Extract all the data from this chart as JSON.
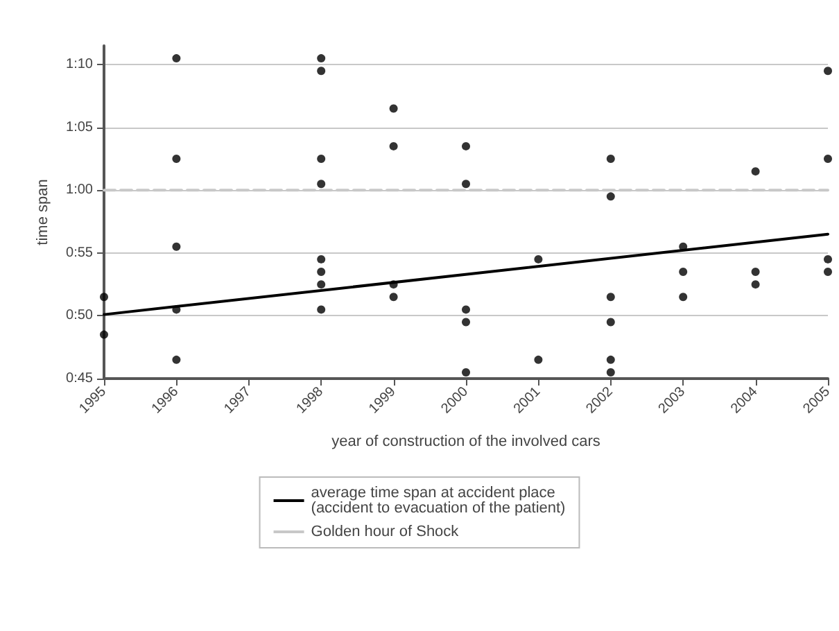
{
  "chart_data": {
    "type": "scatter",
    "xlabel": "year of construction of the involved cars",
    "ylabel": "time span",
    "series": [
      {
        "color": "#000000",
        "x": [
          1995,
          1995,
          1996,
          1996,
          1996,
          1996,
          1996,
          1998,
          1998,
          1998,
          1998,
          1998,
          1998,
          1998,
          1998,
          1999,
          1999,
          1999,
          1999,
          2000,
          2000,
          2000,
          2000,
          2000,
          2001,
          2001,
          2002,
          2002,
          2002,
          2002,
          2002,
          2002,
          2003,
          2003,
          2003,
          2004,
          2004,
          2004,
          2005,
          2005,
          2005,
          2005
        ],
        "values": [
          51.5,
          48.5,
          70.5,
          62.5,
          55.5,
          50.5,
          46.5,
          70.5,
          69.5,
          62.5,
          60.5,
          54.5,
          53.5,
          52.5,
          50.5,
          66.5,
          63.5,
          52.5,
          51.5,
          63.5,
          60.5,
          50.5,
          49.5,
          45.5,
          54.5,
          46.5,
          62.5,
          59.5,
          51.5,
          49.5,
          46.5,
          45.5,
          55.5,
          53.5,
          51.5,
          61.5,
          53.5,
          52.5,
          69.5,
          62.5,
          54.5,
          53.5
        ]
      },
      {
        "type": "line",
        "name": "average time span at accident place\n(accident to evacuation of the patient)",
        "color": "#000000",
        "x": [
          1995,
          2005
        ],
        "values": [
          50.1,
          56.5
        ],
        "marker": "none",
        "line_style": "solid"
      },
      {
        "type": "line",
        "name": "Golden hour of Shock",
        "color": "#c8c8c8",
        "x": [
          1995,
          2005
        ],
        "values": [
          60,
          60
        ],
        "marker": "none",
        "line_style": "dashed"
      }
    ],
    "marker": "circle",
    "xlim": [
      1995,
      2005
    ],
    "xticks": [
      1995,
      1996,
      1997,
      1998,
      1999,
      2000,
      2001,
      2002,
      2003,
      2004,
      2005
    ],
    "ylim": [
      45,
      71.5
    ],
    "yticks": [
      {
        "value": 45,
        "label": "0:45"
      },
      {
        "value": 50,
        "label": "0:50"
      },
      {
        "value": 55,
        "label": "0:55"
      },
      {
        "value": 60,
        "label": "1:00"
      },
      {
        "value": 65,
        "label": "1:05"
      },
      {
        "value": 70,
        "label": "1:10"
      }
    ],
    "grid": "y",
    "legend": "bottom"
  }
}
